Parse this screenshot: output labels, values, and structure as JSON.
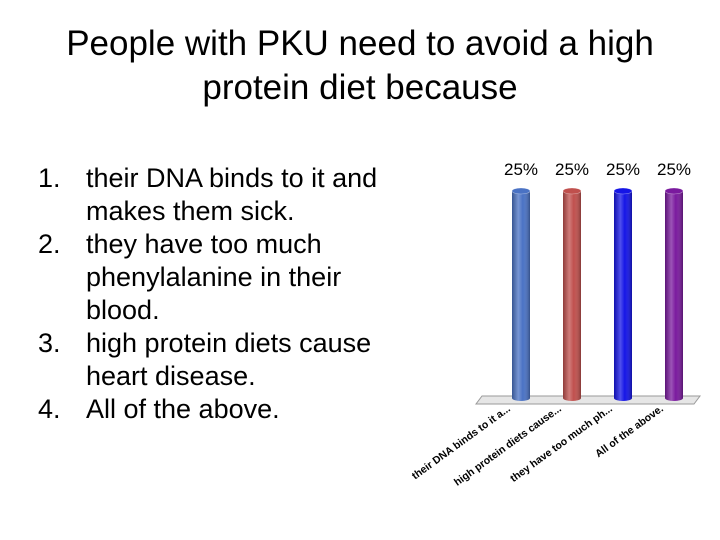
{
  "title": "People with PKU need to avoid a high protein diet because",
  "answers": [
    {
      "num": "1.",
      "text": "their DNA binds to it and makes them sick."
    },
    {
      "num": "2.",
      "text": "they have too much phenylalanine in their blood."
    },
    {
      "num": "3.",
      "text": "high protein diets cause heart disease."
    },
    {
      "num": "4.",
      "text": "All of the above."
    }
  ],
  "chart_data": {
    "type": "bar",
    "categories": [
      "their DNA binds to it a...",
      "high protein diets cause...",
      "they have too much ph...",
      "All of the above."
    ],
    "values": [
      25,
      25,
      25,
      25
    ],
    "value_labels": [
      "25%",
      "25%",
      "25%",
      "25%"
    ],
    "colors": [
      "#4a72c4",
      "#c0504d",
      "#1515e6",
      "#7a1a9e"
    ],
    "ylim": [
      0,
      25
    ],
    "grid": false,
    "legend": "none"
  }
}
